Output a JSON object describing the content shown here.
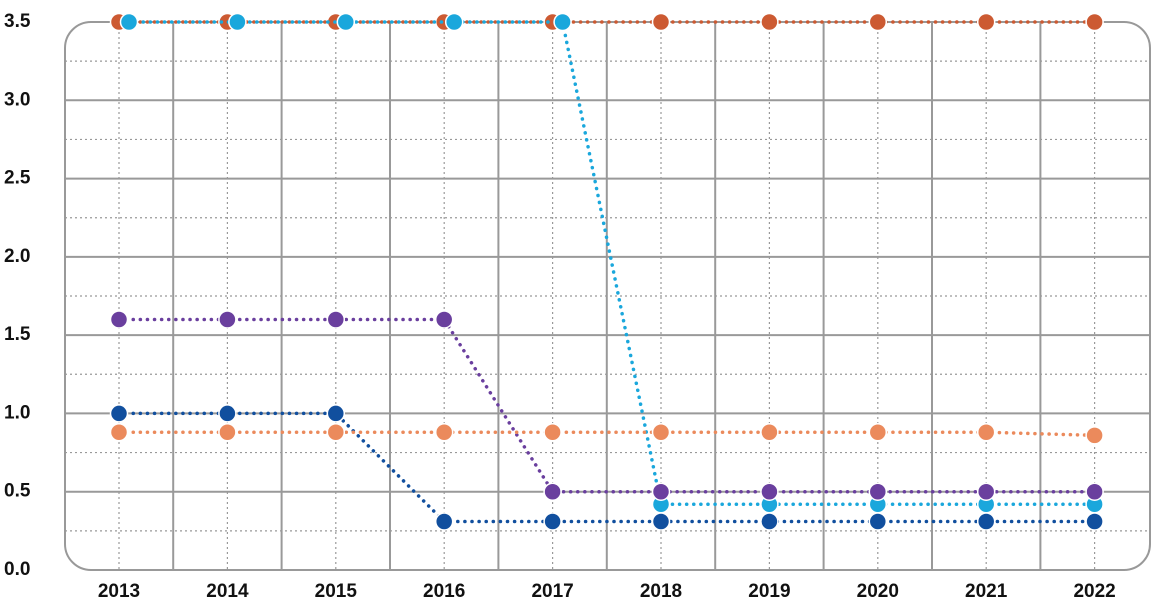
{
  "chart_data": {
    "type": "line",
    "categories": [
      "2013",
      "2014",
      "2015",
      "2016",
      "2017",
      "2018",
      "2019",
      "2020",
      "2021",
      "2022"
    ],
    "series": [
      {
        "color": "#cc5a32",
        "values": [
          3.5,
          3.5,
          3.5,
          3.5,
          3.5,
          3.5,
          3.5,
          3.5,
          3.5,
          3.5
        ]
      },
      {
        "color": "#1aa7dc",
        "values": [
          3.5,
          3.5,
          3.5,
          3.5,
          3.5,
          0.42,
          0.42,
          0.42,
          0.42,
          0.42
        ]
      },
      {
        "color": "#6a3f9e",
        "values": [
          1.6,
          1.6,
          1.6,
          1.6,
          0.5,
          0.5,
          0.5,
          0.5,
          0.5,
          0.5
        ]
      },
      {
        "color": "#114f9e",
        "values": [
          1.0,
          1.0,
          1.0,
          0.31,
          0.31,
          0.31,
          0.31,
          0.31,
          0.31,
          0.31
        ]
      },
      {
        "color": "#eb8a5c",
        "values": [
          0.88,
          0.88,
          0.88,
          0.88,
          0.88,
          0.88,
          0.88,
          0.88,
          0.88,
          0.86
        ]
      }
    ],
    "ylim": [
      0,
      3.5
    ],
    "yticks": [
      {
        "value": 0,
        "label": "0.0"
      },
      0.5,
      {
        "value": 1,
        "label": "1.0"
      },
      1.5,
      {
        "value": 2,
        "label": "2.0"
      },
      2.5,
      {
        "value": 3,
        "label": "3.0"
      },
      3.5
    ],
    "grid": true
  }
}
